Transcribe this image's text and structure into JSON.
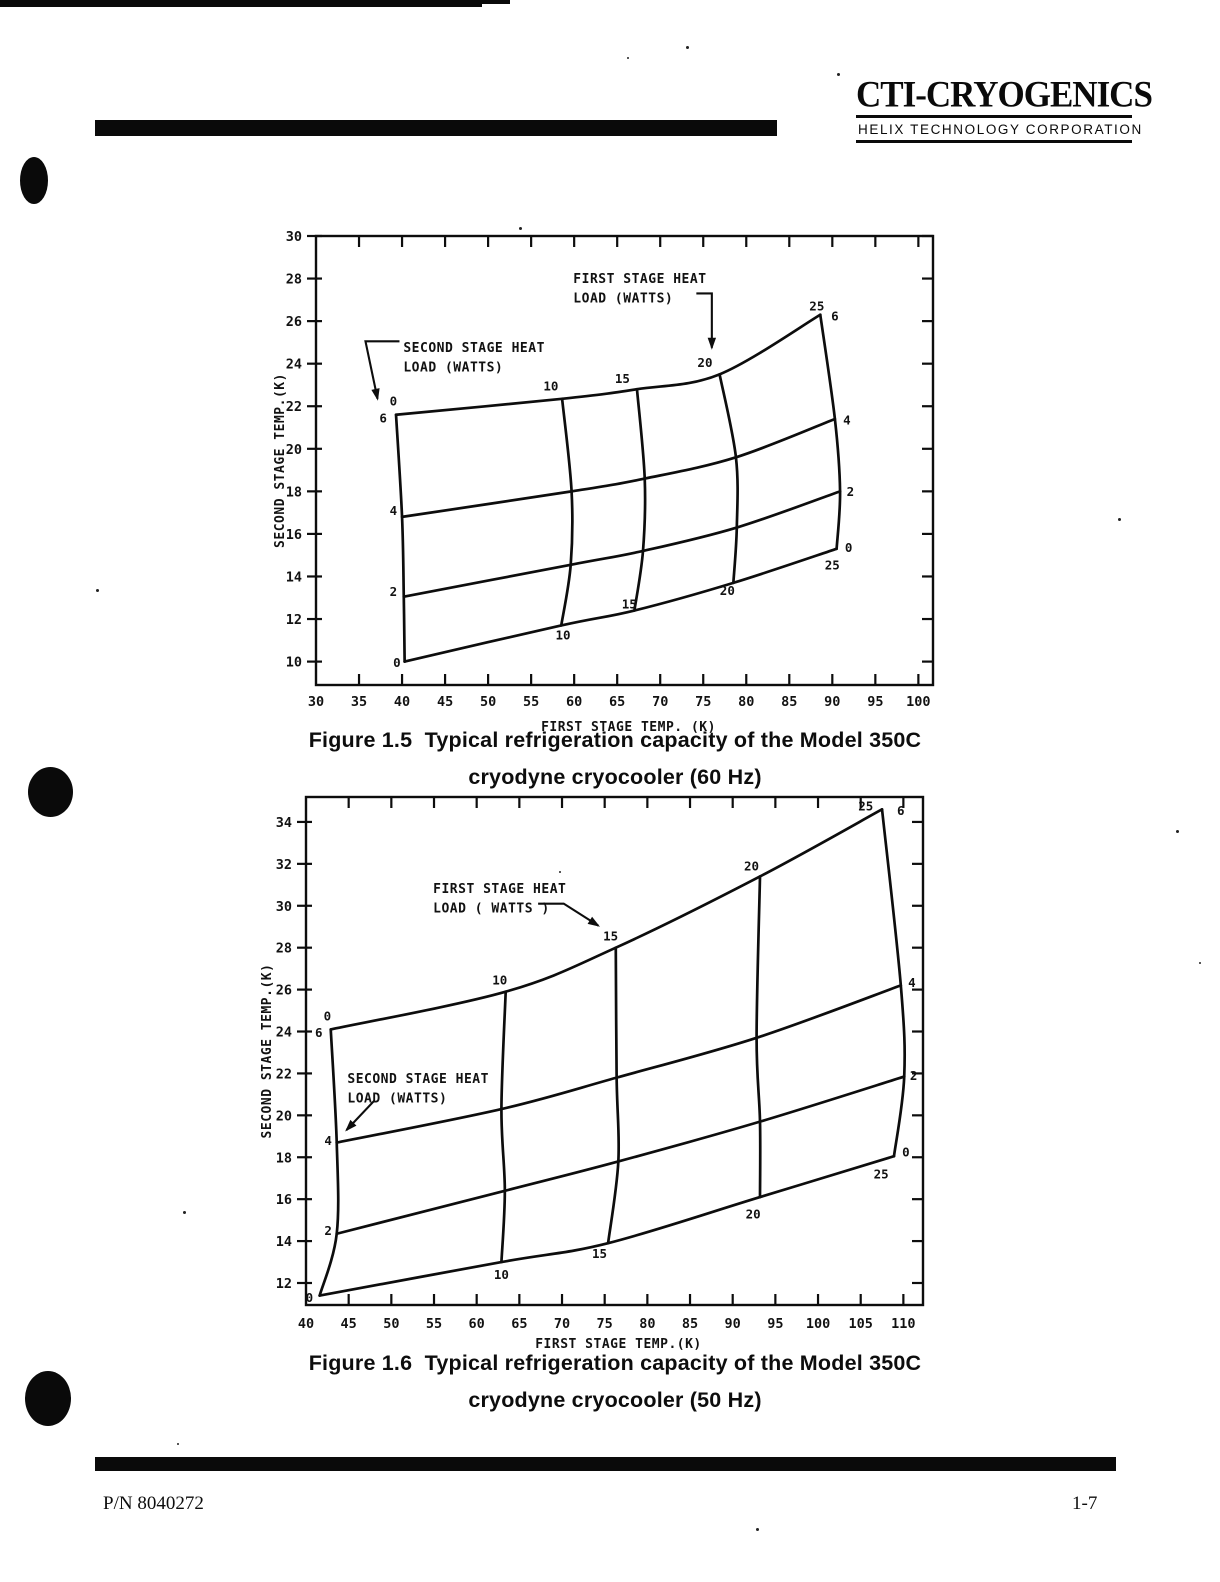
{
  "page": {
    "header": {
      "brand": "CTI-CRYOGENICS",
      "subtitle": "HELIX TECHNOLOGY CORPORATION"
    },
    "footer": {
      "part_number": "P/N 8040272",
      "page_number": "1-7"
    },
    "ink_color": "#0d0d0d",
    "paper_color": "#ffffff"
  },
  "chart_data": [
    {
      "type": "line",
      "id": "figure-1-5",
      "caption": {
        "line1": "Figure 1.5  Typical refrigeration capacity of the Model 350C",
        "line2": "cryodyne cryocooler (60 Hz)"
      },
      "xlabel": "FIRST STAGE TEMP. (K)",
      "ylabel": "SECOND STAGE TEMP.(K)",
      "xlim": [
        30,
        101.7
      ],
      "ylim": [
        8.9,
        30
      ],
      "x_ticks": [
        30,
        35,
        40,
        45,
        50,
        55,
        60,
        65,
        70,
        75,
        80,
        85,
        90,
        95,
        100
      ],
      "y_ticks": [
        10,
        12,
        14,
        16,
        18,
        20,
        22,
        24,
        26,
        28,
        30
      ],
      "series": [
        {
          "name": "second-stage-load-6w",
          "stage": "second",
          "load_watts": 6,
          "points": [
            [
              39.3,
              21.6
            ],
            [
              58.6,
              22.35
            ],
            [
              67.3,
              22.8
            ],
            [
              76.9,
              23.5
            ],
            [
              88.6,
              26.3
            ]
          ]
        },
        {
          "name": "second-stage-load-4w",
          "stage": "second",
          "load_watts": 4,
          "points": [
            [
              40.0,
              16.8
            ],
            [
              59.7,
              18.0
            ],
            [
              68.2,
              18.6
            ],
            [
              78.8,
              19.6
            ],
            [
              90.3,
              21.4
            ]
          ]
        },
        {
          "name": "second-stage-load-2w",
          "stage": "second",
          "load_watts": 2,
          "points": [
            [
              40.2,
              13.05
            ],
            [
              59.6,
              14.55
            ],
            [
              68.0,
              15.2
            ],
            [
              78.9,
              16.3
            ],
            [
              90.9,
              18.0
            ]
          ]
        },
        {
          "name": "second-stage-load-0w",
          "stage": "second",
          "load_watts": 0,
          "points": [
            [
              40.3,
              10.0
            ],
            [
              58.5,
              11.7
            ],
            [
              67.0,
              12.4
            ],
            [
              78.5,
              13.7
            ],
            [
              90.5,
              15.3
            ]
          ]
        },
        {
          "name": "first-stage-load-0w",
          "stage": "first",
          "load_watts": 0,
          "points": [
            [
              40.3,
              10.0
            ],
            [
              40.2,
              13.05
            ],
            [
              40.0,
              16.8
            ],
            [
              39.3,
              21.6
            ]
          ]
        },
        {
          "name": "first-stage-load-10w",
          "stage": "first",
          "load_watts": 10,
          "points": [
            [
              58.5,
              11.7
            ],
            [
              59.6,
              14.55
            ],
            [
              59.7,
              18.0
            ],
            [
              58.6,
              22.35
            ]
          ]
        },
        {
          "name": "first-stage-load-15w",
          "stage": "first",
          "load_watts": 15,
          "points": [
            [
              67.0,
              12.4
            ],
            [
              68.0,
              15.2
            ],
            [
              68.2,
              18.6
            ],
            [
              67.3,
              22.8
            ]
          ]
        },
        {
          "name": "first-stage-load-20w",
          "stage": "first",
          "load_watts": 20,
          "points": [
            [
              78.5,
              13.7
            ],
            [
              78.9,
              16.3
            ],
            [
              78.8,
              19.6
            ],
            [
              76.9,
              23.5
            ]
          ]
        },
        {
          "name": "first-stage-load-25w",
          "stage": "first",
          "load_watts": 25,
          "points": [
            [
              90.5,
              15.3
            ],
            [
              90.9,
              18.0
            ],
            [
              90.3,
              21.4
            ],
            [
              88.6,
              26.3
            ]
          ]
        }
      ],
      "point_labels": [
        {
          "text": "0",
          "x": 39.0,
          "y": 22.25
        },
        {
          "text": "6",
          "x": 37.8,
          "y": 21.45
        },
        {
          "text": "10",
          "x": 57.3,
          "y": 22.95
        },
        {
          "text": "15",
          "x": 65.6,
          "y": 23.3
        },
        {
          "text": "20",
          "x": 75.2,
          "y": 24.05
        },
        {
          "text": "25",
          "x": 88.2,
          "y": 26.7
        },
        {
          "text": "6",
          "x": 90.3,
          "y": 26.25
        },
        {
          "text": "4",
          "x": 91.7,
          "y": 21.35
        },
        {
          "text": "2",
          "x": 92.1,
          "y": 18.0
        },
        {
          "text": "0",
          "x": 91.9,
          "y": 15.35
        },
        {
          "text": "25",
          "x": 90.0,
          "y": 14.55
        },
        {
          "text": "4",
          "x": 39.0,
          "y": 17.1
        },
        {
          "text": "2",
          "x": 39.0,
          "y": 13.3
        },
        {
          "text": "0",
          "x": 39.4,
          "y": 9.95
        },
        {
          "text": "10",
          "x": 58.7,
          "y": 11.25
        },
        {
          "text": "15",
          "x": 66.4,
          "y": 12.7
        },
        {
          "text": "20",
          "x": 77.8,
          "y": 13.35
        }
      ],
      "annotations": [
        {
          "name": "first-stage-heat-load-callout",
          "lines": [
            "FIRST STAGE HEAT",
            "LOAD (WATTS)"
          ],
          "x": 59.9,
          "y": 27.8,
          "leader": [
            [
              74.2,
              27.3
            ],
            [
              76.0,
              27.3
            ],
            [
              76.0,
              24.75
            ]
          ]
        },
        {
          "name": "second-stage-heat-load-callout",
          "lines": [
            "SECOND STAGE HEAT",
            "LOAD (WATTS)"
          ],
          "x": 40.15,
          "y": 24.55,
          "leader": [
            [
              39.7,
              25.05
            ],
            [
              35.75,
              25.05
            ],
            [
              37.15,
              22.35
            ]
          ]
        }
      ]
    },
    {
      "type": "line",
      "id": "figure-1-6",
      "caption": {
        "line1": "Figure 1.6  Typical refrigeration capacity of the Model 350C",
        "line2": "cryodyne cryocooler (50 Hz)"
      },
      "xlabel": "FIRST STAGE TEMP.(K)",
      "ylabel": "SECOND STAGE TEMP.(K)",
      "xlim": [
        40,
        112.3
      ],
      "ylim": [
        10.95,
        35.19
      ],
      "x_ticks": [
        40,
        45,
        50,
        55,
        60,
        65,
        70,
        75,
        80,
        85,
        90,
        95,
        100,
        105,
        110
      ],
      "y_ticks": [
        12,
        14,
        16,
        18,
        20,
        22,
        24,
        26,
        28,
        30,
        32,
        34
      ],
      "series": [
        {
          "name": "second-stage-load-6w",
          "stage": "second",
          "load_watts": 6,
          "points": [
            [
              42.9,
              24.1
            ],
            [
              63.4,
              25.9
            ],
            [
              76.3,
              28.0
            ],
            [
              93.2,
              31.4
            ],
            [
              107.5,
              34.6
            ]
          ]
        },
        {
          "name": "second-stage-load-4w",
          "stage": "second",
          "load_watts": 4,
          "points": [
            [
              43.6,
              18.7
            ],
            [
              62.9,
              20.3
            ],
            [
              76.4,
              21.8
            ],
            [
              92.8,
              23.7
            ],
            [
              109.7,
              26.2
            ]
          ]
        },
        {
          "name": "second-stage-load-2w",
          "stage": "second",
          "load_watts": 2,
          "points": [
            [
              43.6,
              14.35
            ],
            [
              63.3,
              16.4
            ],
            [
              76.6,
              17.8
            ],
            [
              93.2,
              19.7
            ],
            [
              110.1,
              21.85
            ]
          ]
        },
        {
          "name": "second-stage-load-0w",
          "stage": "second",
          "load_watts": 0,
          "points": [
            [
              41.6,
              11.4
            ],
            [
              62.9,
              13.0
            ],
            [
              75.4,
              13.9
            ],
            [
              93.2,
              16.1
            ],
            [
              108.9,
              18.05
            ]
          ]
        },
        {
          "name": "first-stage-load-0w",
          "stage": "first",
          "load_watts": 0,
          "points": [
            [
              41.6,
              11.4
            ],
            [
              43.6,
              14.35
            ],
            [
              43.6,
              18.7
            ],
            [
              42.9,
              24.1
            ]
          ]
        },
        {
          "name": "first-stage-load-10w",
          "stage": "first",
          "load_watts": 10,
          "points": [
            [
              62.9,
              13.0
            ],
            [
              63.3,
              16.4
            ],
            [
              62.9,
              20.3
            ],
            [
              63.4,
              25.9
            ]
          ]
        },
        {
          "name": "first-stage-load-15w",
          "stage": "first",
          "load_watts": 15,
          "points": [
            [
              75.4,
              13.9
            ],
            [
              76.6,
              17.8
            ],
            [
              76.4,
              21.8
            ],
            [
              76.3,
              28.0
            ]
          ]
        },
        {
          "name": "first-stage-load-20w",
          "stage": "first",
          "load_watts": 20,
          "points": [
            [
              93.2,
              16.1
            ],
            [
              93.2,
              19.7
            ],
            [
              92.8,
              23.7
            ],
            [
              93.2,
              31.4
            ]
          ]
        },
        {
          "name": "first-stage-load-25w",
          "stage": "first",
          "load_watts": 25,
          "points": [
            [
              108.9,
              18.05
            ],
            [
              110.1,
              21.85
            ],
            [
              109.7,
              26.2
            ],
            [
              107.5,
              34.6
            ]
          ]
        }
      ],
      "point_labels": [
        {
          "text": "0",
          "x": 42.5,
          "y": 24.75
        },
        {
          "text": "6",
          "x": 41.5,
          "y": 23.95
        },
        {
          "text": "10",
          "x": 62.7,
          "y": 26.45
        },
        {
          "text": "15",
          "x": 75.7,
          "y": 28.55
        },
        {
          "text": "20",
          "x": 92.2,
          "y": 31.9
        },
        {
          "text": "25",
          "x": 105.6,
          "y": 34.75
        },
        {
          "text": "6",
          "x": 109.7,
          "y": 34.55
        },
        {
          "text": "4",
          "x": 111.0,
          "y": 26.35
        },
        {
          "text": "2",
          "x": 111.2,
          "y": 21.9
        },
        {
          "text": "0",
          "x": 110.3,
          "y": 18.25
        },
        {
          "text": "25",
          "x": 107.4,
          "y": 17.2
        },
        {
          "text": "4",
          "x": 42.6,
          "y": 18.8
        },
        {
          "text": "2",
          "x": 42.6,
          "y": 14.5
        },
        {
          "text": "0",
          "x": 40.4,
          "y": 11.3
        },
        {
          "text": "10",
          "x": 62.9,
          "y": 12.4
        },
        {
          "text": "15",
          "x": 74.4,
          "y": 13.4
        },
        {
          "text": "20",
          "x": 92.4,
          "y": 15.3
        }
      ],
      "annotations": [
        {
          "name": "first-stage-heat-load-callout",
          "lines": [
            "FIRST STAGE HEAT",
            "LOAD ( WATTS )"
          ],
          "x": 54.9,
          "y": 30.6,
          "leader": [
            [
              67.2,
              30.1
            ],
            [
              70.2,
              30.1
            ],
            [
              74.25,
              29.05
            ]
          ]
        },
        {
          "name": "second-stage-heat-load-callout",
          "lines": [
            "SECOND STAGE HEAT",
            "LOAD (WATTS)"
          ],
          "x": 44.85,
          "y": 21.55,
          "leader": [
            [
              48.0,
              20.7
            ],
            [
              44.75,
              19.3
            ]
          ]
        }
      ]
    }
  ]
}
